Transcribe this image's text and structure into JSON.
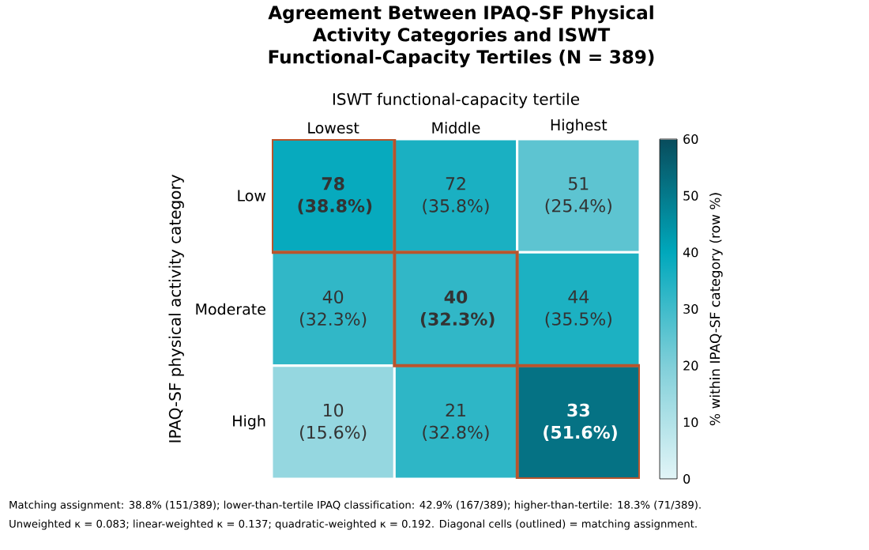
{
  "chart_data": {
    "type": "heatmap",
    "title": "Agreement Between IPAQ-SF Physical Activity Categories and ISWT Functional-Capacity Tertiles (N = 389)",
    "xlabel": "ISWT functional-capacity tertile",
    "ylabel": "IPAQ-SF physical activity category",
    "clabel": "% within IPAQ-SF category (row %)",
    "categories": [
      "Lowest",
      "Middle",
      "Highest"
    ],
    "y_categories": [
      "Low",
      "Moderate",
      "High"
    ],
    "cells": [
      [
        38.8,
        35.8,
        25.4
      ],
      [
        32.3,
        32.3,
        35.5
      ],
      [
        15.6,
        32.8,
        51.6
      ]
    ],
    "cell_labels": [
      [
        "**78 (38.8%)**",
        "72 (35.8%)",
        "51 (25.4%)"
      ],
      [
        "40 (32.3%)",
        "**40 (32.3%)**",
        "44 (35.5%)"
      ],
      [
        "10 (15.6%)",
        "21 (32.8%)",
        "**33 (51.6%)**"
      ]
    ],
    "clim": [
      0,
      60
    ],
    "cticks": [
      0,
      10,
      20,
      30,
      40,
      50,
      60
    ],
    "annotations": [
      "Matching assignment: 38.8% (151/389);  lower-than-tertile IPAQ classification: 42.9% (167/389);  higher-than-tertile: 18.3% (71/389).",
      "Unweighted κ = 0.083;  linear-weighted κ = 0.137;  quadratic-weighted κ = 0.192.  Diagonal cells (outlined) = matching assignment."
    ]
  }
}
